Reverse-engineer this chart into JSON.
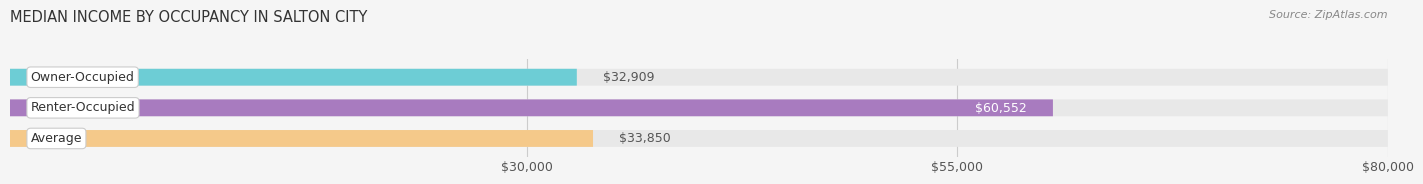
{
  "title": "MEDIAN INCOME BY OCCUPANCY IN SALTON CITY",
  "source": "Source: ZipAtlas.com",
  "categories": [
    "Owner-Occupied",
    "Renter-Occupied",
    "Average"
  ],
  "values": [
    32909,
    60552,
    33850
  ],
  "bar_colors": [
    "#6dcdd5",
    "#a87bbf",
    "#f5c98a"
  ],
  "bar_bg_color": "#e8e8e8",
  "value_labels": [
    "$32,909",
    "$60,552",
    "$33,850"
  ],
  "label_colors": [
    "#555555",
    "#ffffff",
    "#555555"
  ],
  "xmin": 0,
  "xmax": 80000,
  "xticks": [
    30000,
    55000,
    80000
  ],
  "xtick_labels": [
    "$30,000",
    "$55,000",
    "$80,000"
  ],
  "title_fontsize": 10.5,
  "tick_fontsize": 9,
  "bar_label_fontsize": 9,
  "cat_label_fontsize": 9,
  "background_color": "#f5f5f5"
}
